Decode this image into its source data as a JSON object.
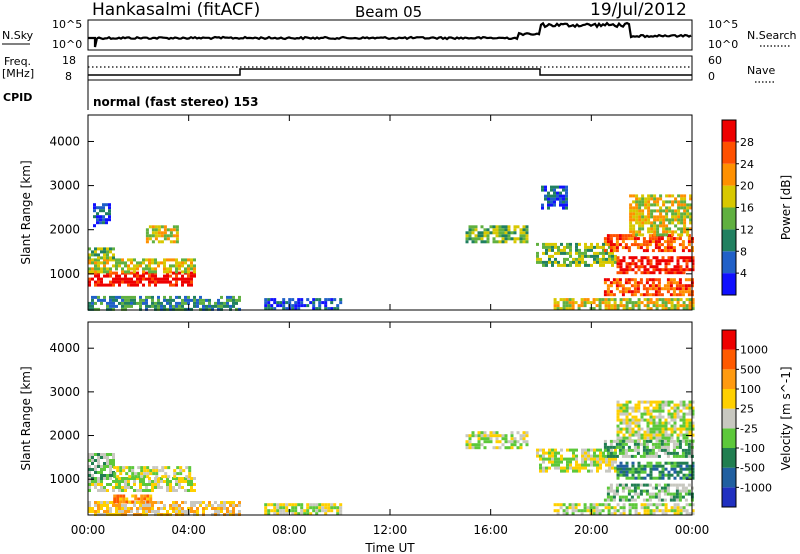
{
  "header": {
    "station": "Hankasalmi (fitACF)",
    "beam": "Beam 05",
    "date": "19/Jul/2012"
  },
  "noise_panel": {
    "left_label": "N.Sky",
    "right_label": "N.Search",
    "left_ticks": [
      "10^5",
      "10^0"
    ],
    "right_ticks": [
      "10^5",
      "10^0"
    ]
  },
  "freq_panel": {
    "left_label_line1": "Freq.",
    "left_label_line2": "[MHz]",
    "left_ticks": [
      "18",
      "8"
    ],
    "right_label": "Nave",
    "right_ticks": [
      "60",
      "0"
    ]
  },
  "cpid": {
    "label": "CPID",
    "text": "normal (fast stereo) 153"
  },
  "chart_data": [
    {
      "type": "heatmap",
      "title": "",
      "ylabel": "Slant Range [km]",
      "xlabel": "",
      "x_ticks": [
        "00:00",
        "04:00",
        "08:00",
        "12:00",
        "16:00",
        "20:00",
        "00:00"
      ],
      "x_tick_hours": [
        0,
        4,
        8,
        12,
        16,
        20,
        24
      ],
      "y_ticks": [
        1000,
        2000,
        3000,
        4000
      ],
      "ylim": [
        180,
        4600
      ],
      "xlim": [
        0,
        24
      ],
      "colorbar": {
        "label": "Power [dB]",
        "ticks": [
          "4",
          "8",
          "12",
          "16",
          "20",
          "24",
          "28"
        ],
        "colors": [
          "#1010ff",
          "#2060c8",
          "#208060",
          "#60b040",
          "#d8c800",
          "#ff9000",
          "#ff5000",
          "#ee0000"
        ]
      },
      "regions": [
        {
          "x0": 0.0,
          "x1": 4.2,
          "y0": 750,
          "y1": 1050,
          "level": 7
        },
        {
          "x0": 0.0,
          "x1": 4.2,
          "y0": 1050,
          "y1": 1350,
          "level": 4
        },
        {
          "x0": 0.0,
          "x1": 1.0,
          "y0": 1350,
          "y1": 1600,
          "level": 3
        },
        {
          "x0": 0.2,
          "x1": 0.8,
          "y0": 2100,
          "y1": 2600,
          "level": 1
        },
        {
          "x0": 2.3,
          "x1": 3.6,
          "y0": 1700,
          "y1": 2100,
          "level": 4
        },
        {
          "x0": 0.0,
          "x1": 6.0,
          "y0": 200,
          "y1": 500,
          "level": 2
        },
        {
          "x0": 7.0,
          "x1": 10.0,
          "y0": 200,
          "y1": 450,
          "level": 1
        },
        {
          "x0": 15.0,
          "x1": 17.5,
          "y0": 1700,
          "y1": 2100,
          "level": 3
        },
        {
          "x0": 17.8,
          "x1": 21.0,
          "y0": 1200,
          "y1": 1700,
          "level": 3
        },
        {
          "x0": 20.5,
          "x1": 24.0,
          "y0": 1500,
          "y1": 1900,
          "level": 6
        },
        {
          "x0": 21.5,
          "x1": 24.0,
          "y0": 1900,
          "y1": 2800,
          "level": 4
        },
        {
          "x0": 21.0,
          "x1": 24.0,
          "y0": 1000,
          "y1": 1400,
          "level": 7
        },
        {
          "x0": 20.5,
          "x1": 24.0,
          "y0": 550,
          "y1": 900,
          "level": 6
        },
        {
          "x0": 18.5,
          "x1": 24.0,
          "y0": 200,
          "y1": 450,
          "level": 4
        },
        {
          "x0": 18.0,
          "x1": 19.0,
          "y0": 2500,
          "y1": 3000,
          "level": 1
        }
      ]
    },
    {
      "type": "heatmap",
      "title": "",
      "ylabel": "Slant Range [km]",
      "xlabel": "Time UT",
      "x_ticks": [
        "00:00",
        "04:00",
        "08:00",
        "12:00",
        "16:00",
        "20:00",
        "00:00"
      ],
      "x_tick_hours": [
        0,
        4,
        8,
        12,
        16,
        20,
        24
      ],
      "y_ticks": [
        1000,
        2000,
        3000,
        4000
      ],
      "ylim": [
        180,
        4600
      ],
      "xlim": [
        0,
        24
      ],
      "colorbar": {
        "label": "Velocity [m s^-1]",
        "ticks": [
          "1000",
          "500",
          "100",
          "25",
          "-25",
          "-100",
          "-500",
          "-1000"
        ],
        "colors": [
          "#2030c0",
          "#205fa0",
          "#207e50",
          "#5cc83a",
          "#c8c8c0",
          "#ffd000",
          "#ff9a10",
          "#ff5a00",
          "#ee0000"
        ]
      },
      "regions": [
        {
          "x0": 0.0,
          "x1": 4.2,
          "y0": 750,
          "y1": 1050,
          "level": 4
        },
        {
          "x0": 0.0,
          "x1": 1.0,
          "y0": 1050,
          "y1": 1600,
          "level": 3
        },
        {
          "x0": 1.0,
          "x1": 4.0,
          "y0": 1050,
          "y1": 1300,
          "level": 4
        },
        {
          "x0": 0.0,
          "x1": 6.0,
          "y0": 200,
          "y1": 500,
          "level": 5
        },
        {
          "x0": 1.0,
          "x1": 2.5,
          "y0": 500,
          "y1": 650,
          "level": 6
        },
        {
          "x0": 7.0,
          "x1": 10.0,
          "y0": 200,
          "y1": 450,
          "level": 4
        },
        {
          "x0": 15.0,
          "x1": 17.5,
          "y0": 1700,
          "y1": 2100,
          "level": 4
        },
        {
          "x0": 17.8,
          "x1": 21.0,
          "y0": 1200,
          "y1": 1700,
          "level": 4
        },
        {
          "x0": 21.0,
          "x1": 24.0,
          "y0": 1900,
          "y1": 2800,
          "level": 4
        },
        {
          "x0": 20.5,
          "x1": 24.0,
          "y0": 1500,
          "y1": 1900,
          "level": 3
        },
        {
          "x0": 21.0,
          "x1": 24.0,
          "y0": 1000,
          "y1": 1400,
          "level": 2
        },
        {
          "x0": 20.5,
          "x1": 24.0,
          "y0": 550,
          "y1": 900,
          "level": 3
        },
        {
          "x0": 18.5,
          "x1": 24.0,
          "y0": 200,
          "y1": 450,
          "level": 4
        }
      ]
    }
  ]
}
